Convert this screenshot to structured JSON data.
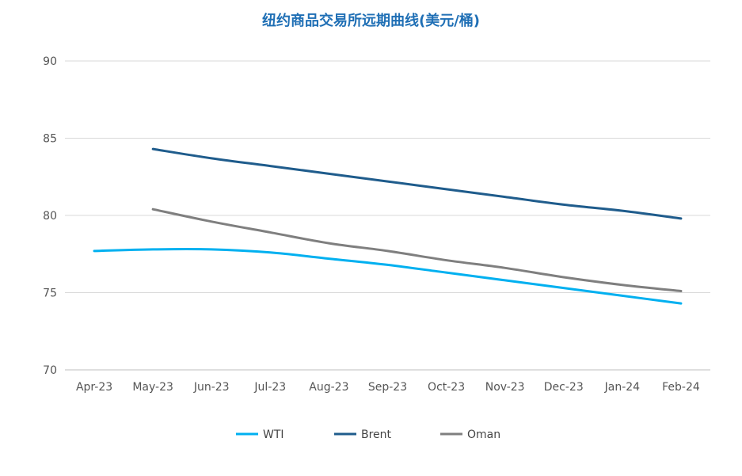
{
  "chart_data": {
    "type": "line",
    "title": "纽约商品交易所远期曲线(美元/桶)",
    "xlabel": "",
    "ylabel": "",
    "categories": [
      "Apr-23",
      "May-23",
      "Jun-23",
      "Jul-23",
      "Aug-23",
      "Sep-23",
      "Oct-23",
      "Nov-23",
      "Dec-23",
      "Jan-24",
      "Feb-24"
    ],
    "ylim": [
      70,
      90
    ],
    "yticks": [
      70,
      75,
      80,
      85,
      90
    ],
    "grid": true,
    "legend_position": "bottom",
    "series": [
      {
        "name": "WTI",
        "color": "#00b0f0",
        "values": [
          77.7,
          77.8,
          77.8,
          77.6,
          77.2,
          76.8,
          76.3,
          75.8,
          75.3,
          74.8,
          74.3
        ]
      },
      {
        "name": "Brent",
        "color": "#1f5c8c",
        "values": [
          null,
          84.3,
          83.7,
          83.2,
          82.7,
          82.2,
          81.7,
          81.2,
          80.7,
          80.3,
          79.8
        ]
      },
      {
        "name": "Oman",
        "color": "#7f7f7f",
        "values": [
          null,
          80.4,
          79.6,
          78.9,
          78.2,
          77.7,
          77.1,
          76.6,
          76.0,
          75.5,
          75.1
        ]
      }
    ]
  }
}
